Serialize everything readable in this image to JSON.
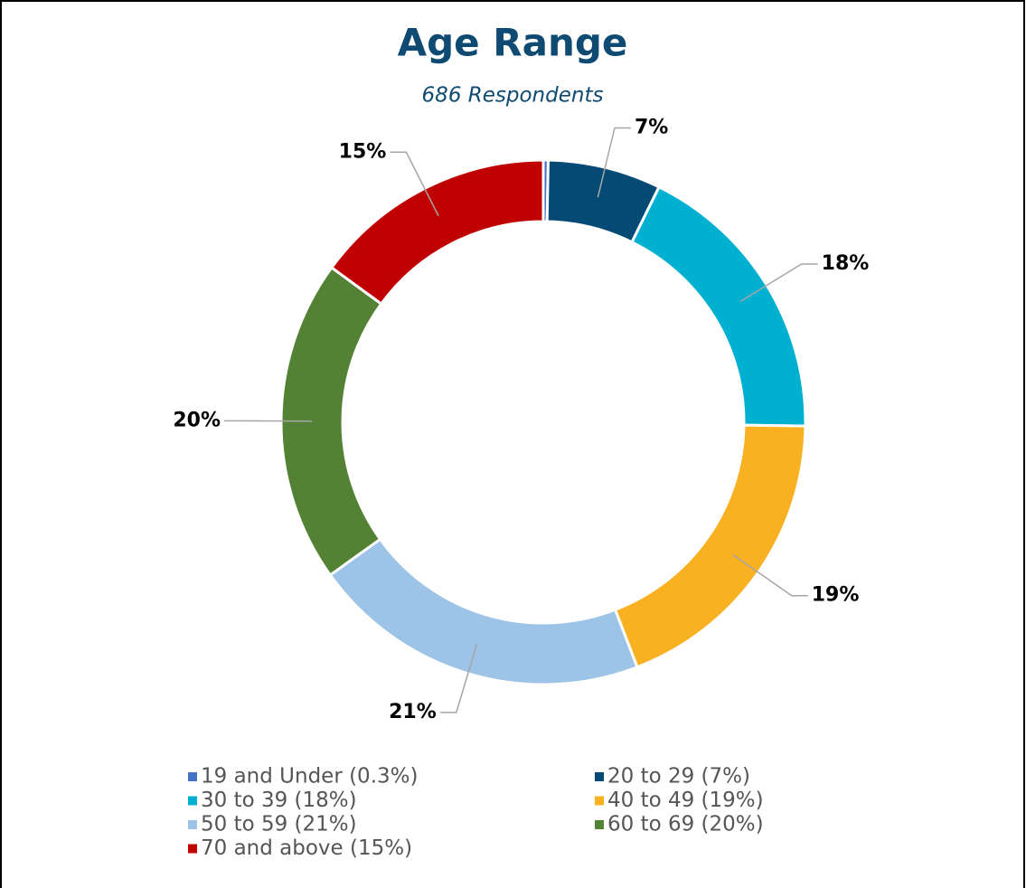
{
  "chart_data": {
    "type": "donut",
    "title": "Age Range",
    "subtitle": "686 Respondents",
    "categories": [
      "19 and Under (0.3%)",
      "20 to 29 (7%)",
      "30 to 39 (18%)",
      "40 to 49 (19%)",
      "50 to 59 (21%)",
      "60 to 69 (20%)",
      "70 and above (15%)"
    ],
    "values": [
      0.3,
      7,
      18,
      19,
      21,
      20,
      15
    ],
    "value_labels": [
      null,
      "7%",
      "18%",
      "19%",
      "21%",
      "20%",
      "15%"
    ],
    "colors": [
      "#4472c4",
      "#054a75",
      "#00b0d0",
      "#f9b122",
      "#9dc3e6",
      "#548235",
      "#c00000"
    ],
    "legend": "bottom"
  }
}
